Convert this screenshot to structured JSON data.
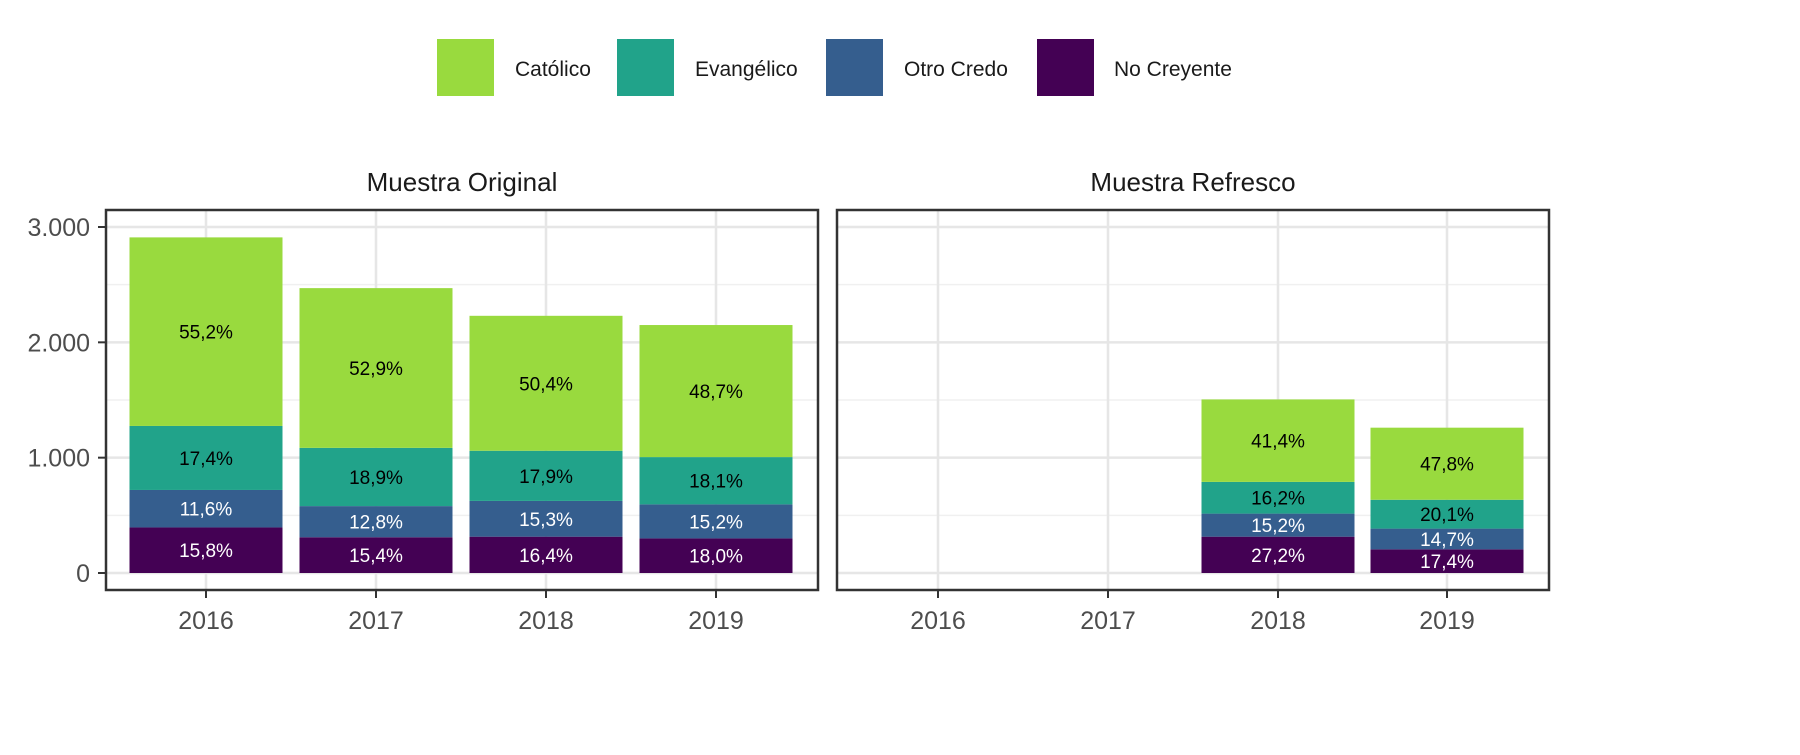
{
  "chart_data": {
    "type": "bar",
    "stacked": true,
    "legend": {
      "position": "top",
      "entries": [
        {
          "name": "Católico",
          "color": "#99DA3E"
        },
        {
          "name": "Evangélico",
          "color": "#21A38A"
        },
        {
          "name": "Otro Credo",
          "color": "#355E8E"
        },
        {
          "name": "No Creyente",
          "color": "#440154"
        }
      ]
    },
    "series_order_bottom_to_top": [
      "No Creyente",
      "Otro Credo",
      "Evangélico",
      "Católico"
    ],
    "y_axis": {
      "ylim": [
        0,
        3150
      ],
      "ticks": [
        0,
        1000,
        2000,
        3000
      ],
      "tick_labels": [
        "0",
        "1.000",
        "2.000",
        "3.000"
      ]
    },
    "categories": [
      "2016",
      "2017",
      "2018",
      "2019"
    ],
    "grid": true,
    "panels": [
      {
        "title": "Muestra Original",
        "bars": [
          {
            "x": "2016",
            "total": 2910,
            "values": {
              "No Creyente": 395,
              "Otro Credo": 325,
              "Evangélico": 555,
              "Católico": 1635
            },
            "labels": {
              "No Creyente": "15,8%",
              "Otro Credo": "11,6%",
              "Evangélico": "17,4%",
              "Católico": "55,2%"
            }
          },
          {
            "x": "2017",
            "total": 2470,
            "values": {
              "No Creyente": 310,
              "Otro Credo": 270,
              "Evangélico": 505,
              "Católico": 1385
            },
            "labels": {
              "No Creyente": "15,4%",
              "Otro Credo": "12,8%",
              "Evangélico": "18,9%",
              "Católico": "52,9%"
            }
          },
          {
            "x": "2018",
            "total": 2230,
            "values": {
              "No Creyente": 315,
              "Otro Credo": 310,
              "Evangélico": 435,
              "Católico": 1170
            },
            "labels": {
              "No Creyente": "16,4%",
              "Otro Credo": "15,3%",
              "Evangélico": "17,9%",
              "Católico": "50,4%"
            }
          },
          {
            "x": "2019",
            "total": 2150,
            "values": {
              "No Creyente": 300,
              "Otro Credo": 295,
              "Evangélico": 410,
              "Católico": 1145
            },
            "labels": {
              "No Creyente": "18,0%",
              "Otro Credo": "15,2%",
              "Evangélico": "18,1%",
              "Católico": "48,7%"
            }
          }
        ]
      },
      {
        "title": "Muestra Refresco",
        "bars": [
          {
            "x": "2018",
            "total": 1505,
            "values": {
              "No Creyente": 315,
              "Otro Credo": 200,
              "Evangélico": 275,
              "Católico": 715
            },
            "labels": {
              "No Creyente": "27,2%",
              "Otro Credo": "15,2%",
              "Evangélico": "16,2%",
              "Católico": "41,4%"
            }
          },
          {
            "x": "2019",
            "total": 1260,
            "values": {
              "No Creyente": 205,
              "Otro Credo": 180,
              "Evangélico": 250,
              "Católico": 625
            },
            "labels": {
              "No Creyente": "17,4%",
              "Otro Credo": "14,7%",
              "Evangélico": "20,1%",
              "Católico": "47,8%"
            }
          }
        ]
      }
    ]
  }
}
